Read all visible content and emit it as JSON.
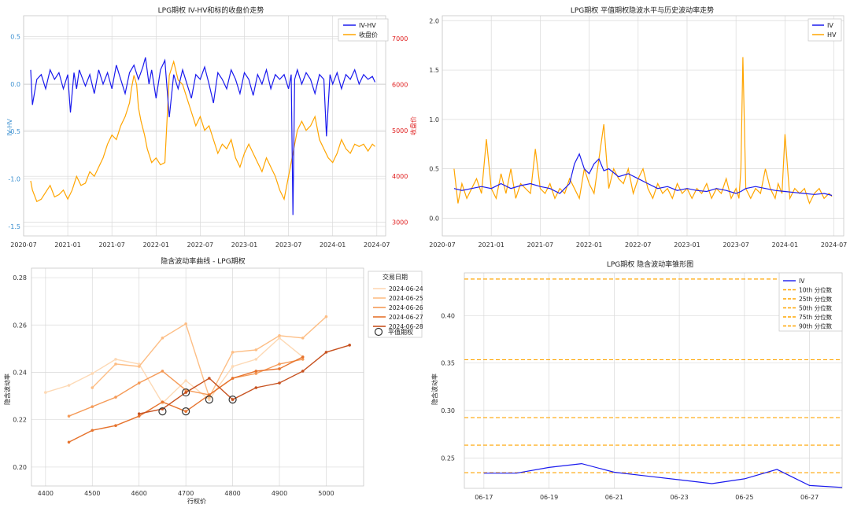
{
  "colors": {
    "iv": "#1a1aee",
    "hv": "#ffa500",
    "close": "#ffa500",
    "right_axis": "#e02020",
    "left_axis": "#3a8fd0",
    "grid": "#d9d9d9",
    "pct": "#ffa500",
    "smile": [
      "#fdd9b5",
      "#fdbe85",
      "#f59a57",
      "#e6732d",
      "#c75220"
    ]
  },
  "chart_data": [
    {
      "id": "ivhv",
      "type": "line",
      "title": "LPG期权 IV-HV和标的收盘价走势",
      "xlabel": "",
      "ylabel": "IV-HV",
      "y2label": "收盘价",
      "ylim": [
        -1.6,
        0.72
      ],
      "y2lim": [
        2700,
        7500
      ],
      "yticks": [
        "0.5",
        "0.0",
        "-0.5",
        "-1.0",
        "-1.5"
      ],
      "ytick_values": [
        0.5,
        0.0,
        -0.5,
        -1.0,
        -1.5
      ],
      "y2ticks": [
        "7000",
        "6000",
        "5000",
        "4000",
        "3000"
      ],
      "y2tick_values": [
        7000,
        6000,
        5000,
        4000,
        3000
      ],
      "xticks": [
        "2020-07",
        "2021-01",
        "2021-07",
        "2022-01",
        "2022-07",
        "2023-01",
        "2023-07",
        "2024-01",
        "2024-07"
      ],
      "xlim": [
        2020.5,
        2024.6
      ],
      "legend": [
        "IV-HV",
        "收盘价"
      ],
      "series": [
        {
          "name": "IV-HV",
          "x": [
            2020.58,
            2020.6,
            2020.65,
            2020.7,
            2020.75,
            2020.8,
            2020.85,
            2020.9,
            2020.95,
            2021.0,
            2021.03,
            2021.07,
            2021.1,
            2021.13,
            2021.17,
            2021.2,
            2021.25,
            2021.3,
            2021.35,
            2021.4,
            2021.45,
            2021.5,
            2021.55,
            2021.6,
            2021.65,
            2021.7,
            2021.75,
            2021.8,
            2021.85,
            2021.88,
            2021.92,
            2021.95,
            2022.0,
            2022.05,
            2022.1,
            2022.15,
            2022.2,
            2022.25,
            2022.3,
            2022.35,
            2022.4,
            2022.45,
            2022.5,
            2022.55,
            2022.6,
            2022.65,
            2022.7,
            2022.75,
            2022.8,
            2022.85,
            2022.9,
            2022.95,
            2023.0,
            2023.05,
            2023.1,
            2023.15,
            2023.2,
            2023.25,
            2023.3,
            2023.35,
            2023.4,
            2023.45,
            2023.5,
            2023.53,
            2023.55,
            2023.57,
            2023.6,
            2023.65,
            2023.7,
            2023.75,
            2023.8,
            2023.85,
            2023.9,
            2023.93,
            2023.97,
            2024.0,
            2024.05,
            2024.1,
            2024.15,
            2024.2,
            2024.25,
            2024.3,
            2024.35,
            2024.4,
            2024.45,
            2024.48
          ],
          "values": [
            0.15,
            -0.22,
            0.05,
            0.1,
            -0.05,
            0.15,
            0.05,
            0.12,
            -0.05,
            0.1,
            -0.3,
            0.12,
            -0.05,
            0.15,
            0.05,
            -0.02,
            0.1,
            -0.1,
            0.15,
            0.0,
            0.12,
            -0.05,
            0.2,
            0.05,
            -0.1,
            0.12,
            0.2,
            0.05,
            0.18,
            0.28,
            0.0,
            0.15,
            -0.15,
            0.15,
            0.25,
            -0.35,
            0.1,
            -0.05,
            0.15,
            0.0,
            -0.15,
            0.1,
            0.05,
            0.18,
            0.0,
            -0.2,
            0.12,
            0.05,
            -0.05,
            0.15,
            0.05,
            -0.1,
            0.12,
            0.05,
            -0.12,
            0.1,
            0.0,
            0.15,
            -0.05,
            0.1,
            0.05,
            0.1,
            -0.05,
            0.1,
            -1.38,
            0.05,
            0.15,
            0.0,
            0.12,
            0.05,
            -0.1,
            0.1,
            0.05,
            -0.55,
            0.1,
            0.0,
            0.12,
            -0.05,
            0.1,
            0.05,
            0.15,
            0.0,
            0.1,
            0.05,
            0.08,
            0.02
          ]
        },
        {
          "name": "收盘价",
          "axis": "y2",
          "x": [
            2020.58,
            2020.6,
            2020.65,
            2020.7,
            2020.75,
            2020.8,
            2020.85,
            2020.9,
            2020.95,
            2021.0,
            2021.05,
            2021.1,
            2021.15,
            2021.2,
            2021.25,
            2021.3,
            2021.35,
            2021.4,
            2021.45,
            2021.5,
            2021.55,
            2021.6,
            2021.65,
            2021.7,
            2021.72,
            2021.75,
            2021.78,
            2021.8,
            2021.83,
            2021.87,
            2021.9,
            2021.95,
            2022.0,
            2022.05,
            2022.1,
            2022.15,
            2022.2,
            2022.25,
            2022.3,
            2022.35,
            2022.4,
            2022.45,
            2022.5,
            2022.55,
            2022.6,
            2022.65,
            2022.7,
            2022.75,
            2022.8,
            2022.85,
            2022.9,
            2022.95,
            2023.0,
            2023.05,
            2023.1,
            2023.15,
            2023.2,
            2023.25,
            2023.3,
            2023.35,
            2023.4,
            2023.45,
            2023.5,
            2023.55,
            2023.6,
            2023.65,
            2023.7,
            2023.75,
            2023.8,
            2023.85,
            2023.9,
            2023.95,
            2024.0,
            2024.05,
            2024.1,
            2024.15,
            2024.2,
            2024.25,
            2024.3,
            2024.35,
            2024.4,
            2024.45,
            2024.48
          ],
          "values": [
            3900,
            3700,
            3450,
            3500,
            3650,
            3800,
            3550,
            3600,
            3700,
            3500,
            3700,
            4000,
            3800,
            3850,
            4100,
            4000,
            4200,
            4400,
            4700,
            4900,
            4800,
            5100,
            5300,
            5600,
            5900,
            6200,
            6000,
            5500,
            5200,
            4900,
            4600,
            4300,
            4400,
            4250,
            4300,
            6200,
            6500,
            6100,
            6000,
            5700,
            5400,
            5100,
            5300,
            5000,
            5100,
            4800,
            4500,
            4700,
            4600,
            4800,
            4400,
            4200,
            4500,
            4700,
            4500,
            4300,
            4100,
            4400,
            4200,
            4000,
            3700,
            3500,
            4000,
            4500,
            5000,
            5200,
            5000,
            5100,
            5300,
            4800,
            4600,
            4400,
            4300,
            4500,
            4800,
            4600,
            4500,
            4700,
            4650,
            4700,
            4550,
            4700,
            4650
          ]
        }
      ]
    },
    {
      "id": "ivhv2",
      "type": "line",
      "title": "LPG期权 平值期权隐波水平与历史波动率走势",
      "xlabel": "",
      "ylabel": "",
      "ylim": [
        -0.18,
        2.05
      ],
      "yticks": [
        "2.0",
        "1.5",
        "1.0",
        "0.5",
        "0.0"
      ],
      "ytick_values": [
        2.0,
        1.5,
        1.0,
        0.5,
        0.0
      ],
      "xticks": [
        "2020-07",
        "2021-01",
        "2021-07",
        "2022-01",
        "2022-07",
        "2023-01",
        "2023-07",
        "2024-01",
        "2024-07"
      ],
      "xlim": [
        2020.5,
        2024.6
      ],
      "legend": [
        "IV",
        "HV"
      ],
      "series": [
        {
          "name": "IV",
          "x": [
            2020.62,
            2020.7,
            2020.8,
            2020.9,
            2021.0,
            2021.1,
            2021.2,
            2021.3,
            2021.4,
            2021.5,
            2021.6,
            2021.7,
            2021.75,
            2021.8,
            2021.85,
            2021.9,
            2021.95,
            2022.0,
            2022.05,
            2022.1,
            2022.15,
            2022.2,
            2022.3,
            2022.4,
            2022.5,
            2022.6,
            2022.7,
            2022.8,
            2022.9,
            2023.0,
            2023.1,
            2023.2,
            2023.3,
            2023.4,
            2023.5,
            2023.55,
            2023.6,
            2023.7,
            2023.8,
            2023.9,
            2024.0,
            2024.1,
            2024.2,
            2024.3,
            2024.4,
            2024.48
          ],
          "values": [
            0.3,
            0.28,
            0.3,
            0.32,
            0.3,
            0.35,
            0.3,
            0.33,
            0.35,
            0.32,
            0.3,
            0.25,
            0.3,
            0.35,
            0.55,
            0.65,
            0.5,
            0.45,
            0.55,
            0.6,
            0.48,
            0.5,
            0.42,
            0.45,
            0.4,
            0.35,
            0.3,
            0.32,
            0.28,
            0.3,
            0.28,
            0.27,
            0.3,
            0.28,
            0.25,
            0.27,
            0.3,
            0.32,
            0.3,
            0.28,
            0.27,
            0.26,
            0.25,
            0.24,
            0.25,
            0.23
          ]
        },
        {
          "name": "HV",
          "x": [
            2020.62,
            2020.66,
            2020.7,
            2020.75,
            2020.8,
            2020.85,
            2020.9,
            2020.95,
            2021.0,
            2021.05,
            2021.1,
            2021.15,
            2021.2,
            2021.25,
            2021.3,
            2021.35,
            2021.4,
            2021.45,
            2021.5,
            2021.55,
            2021.6,
            2021.65,
            2021.7,
            2021.75,
            2021.8,
            2021.85,
            2021.9,
            2021.95,
            2022.0,
            2022.05,
            2022.1,
            2022.15,
            2022.2,
            2022.25,
            2022.3,
            2022.35,
            2022.4,
            2022.45,
            2022.5,
            2022.55,
            2022.6,
            2022.65,
            2022.7,
            2022.75,
            2022.8,
            2022.85,
            2022.9,
            2022.95,
            2023.0,
            2023.05,
            2023.1,
            2023.15,
            2023.2,
            2023.25,
            2023.3,
            2023.35,
            2023.4,
            2023.45,
            2023.5,
            2023.53,
            2023.55,
            2023.57,
            2023.6,
            2023.65,
            2023.7,
            2023.75,
            2023.8,
            2023.85,
            2023.9,
            2023.93,
            2023.97,
            2024.0,
            2024.05,
            2024.1,
            2024.15,
            2024.2,
            2024.25,
            2024.3,
            2024.35,
            2024.4,
            2024.45,
            2024.48
          ],
          "values": [
            0.5,
            0.15,
            0.35,
            0.2,
            0.3,
            0.4,
            0.25,
            0.8,
            0.3,
            0.2,
            0.45,
            0.25,
            0.5,
            0.2,
            0.35,
            0.3,
            0.25,
            0.7,
            0.3,
            0.25,
            0.35,
            0.2,
            0.3,
            0.25,
            0.4,
            0.3,
            0.2,
            0.5,
            0.35,
            0.25,
            0.6,
            0.95,
            0.3,
            0.5,
            0.4,
            0.35,
            0.5,
            0.25,
            0.4,
            0.5,
            0.3,
            0.2,
            0.35,
            0.25,
            0.3,
            0.2,
            0.35,
            0.25,
            0.3,
            0.2,
            0.3,
            0.25,
            0.35,
            0.2,
            0.3,
            0.25,
            0.4,
            0.2,
            0.3,
            0.2,
            0.5,
            1.63,
            0.3,
            0.2,
            0.3,
            0.25,
            0.5,
            0.3,
            0.2,
            0.35,
            0.25,
            0.85,
            0.2,
            0.3,
            0.25,
            0.3,
            0.15,
            0.25,
            0.3,
            0.2,
            0.25,
            0.22
          ]
        }
      ]
    },
    {
      "id": "smile",
      "type": "line",
      "title": "隐含波动率曲线 - LPG期权",
      "xlabel": "行权价",
      "ylabel": "隐含波动率",
      "xlim": [
        4370,
        5080
      ],
      "ylim": [
        0.192,
        0.284
      ],
      "xticks": [
        "4400",
        "4500",
        "4600",
        "4700",
        "4800",
        "4900",
        "5000"
      ],
      "xtick_values": [
        4400,
        4500,
        4600,
        4700,
        4800,
        4900,
        5000
      ],
      "yticks": [
        "0.28",
        "0.26",
        "0.24",
        "0.22",
        "0.20"
      ],
      "ytick_values": [
        0.28,
        0.26,
        0.24,
        0.22,
        0.2
      ],
      "legend_title": "交易日期",
      "legend_marker_label": "平值期权",
      "series": [
        {
          "name": "2024-06-24",
          "x": [
            4400,
            4450,
            4500,
            4550,
            4600,
            4650,
            4700,
            4750,
            4800,
            4850,
            4900,
            4950
          ],
          "values": [
            0.2315,
            0.2345,
            0.2395,
            0.2455,
            0.2435,
            0.227,
            0.2365,
            0.2285,
            0.2425,
            0.2455,
            0.2545,
            0.2465
          ]
        },
        {
          "name": "2024-06-25",
          "x": [
            4500,
            4550,
            4600,
            4650,
            4700,
            4750,
            4800,
            4850,
            4900,
            4950,
            5000
          ],
          "values": [
            0.2335,
            0.2435,
            0.2425,
            0.2545,
            0.2605,
            0.2295,
            0.2485,
            0.2495,
            0.2555,
            0.2545,
            0.2635
          ]
        },
        {
          "name": "2024-06-26",
          "x": [
            4450,
            4500,
            4550,
            4600,
            4650,
            4700,
            4750,
            4800,
            4850,
            4900,
            4950
          ],
          "values": [
            0.2215,
            0.2255,
            0.2295,
            0.2355,
            0.2405,
            0.2325,
            0.2305,
            0.2375,
            0.2395,
            0.2435,
            0.2455
          ]
        },
        {
          "name": "2024-06-27",
          "x": [
            4450,
            4500,
            4550,
            4600,
            4650,
            4700,
            4750,
            4800,
            4850,
            4900,
            4950
          ],
          "values": [
            0.2105,
            0.2155,
            0.2175,
            0.2215,
            0.2275,
            0.2235,
            0.2305,
            0.2375,
            0.2405,
            0.2415,
            0.2465
          ]
        },
        {
          "name": "2024-06-28",
          "x": [
            4600,
            4650,
            4700,
            4750,
            4800,
            4850,
            4900,
            4950,
            5000,
            5050
          ],
          "values": [
            0.2225,
            0.2245,
            0.2315,
            0.2375,
            0.2285,
            0.2335,
            0.2355,
            0.2405,
            0.2485,
            0.2515
          ]
        }
      ],
      "atm_points": [
        {
          "x": 4650,
          "y": 0.2235
        },
        {
          "x": 4700,
          "y": 0.2235
        },
        {
          "x": 4700,
          "y": 0.2315
        },
        {
          "x": 4750,
          "y": 0.2285
        },
        {
          "x": 4800,
          "y": 0.2285
        }
      ]
    },
    {
      "id": "cone",
      "type": "line",
      "title": "LPG期权 隐含波动率锥形图",
      "xlabel": "",
      "ylabel": "隐含波动率",
      "xlim": [
        -0.6,
        11.0
      ],
      "ylim": [
        0.218,
        0.445
      ],
      "xticks": [
        "06-17",
        "06-19",
        "06-21",
        "06-23",
        "06-25",
        "06-27"
      ],
      "xtick_values": [
        0,
        2,
        4,
        6,
        8,
        10
      ],
      "yticks": [
        "0.40",
        "0.35",
        "0.30",
        "0.25"
      ],
      "ytick_values": [
        0.4,
        0.35,
        0.3,
        0.25
      ],
      "series": [
        {
          "name": "IV",
          "x": [
            0,
            1,
            2,
            3,
            4,
            5,
            6,
            7,
            8,
            9,
            10,
            11
          ],
          "values": [
            0.234,
            0.234,
            0.24,
            0.244,
            0.235,
            0.231,
            0.227,
            0.223,
            0.228,
            0.238,
            0.221,
            0.219
          ]
        }
      ],
      "percentiles": [
        {
          "name": "10th 分位数",
          "value": 0.2345
        },
        {
          "name": "25th 分位数",
          "value": 0.2635
        },
        {
          "name": "50th 分位数",
          "value": 0.2925
        },
        {
          "name": "75th 分位数",
          "value": 0.3535
        },
        {
          "name": "90th 分位数",
          "value": 0.4385
        }
      ],
      "legend": [
        "IV",
        "10th 分位数",
        "25th 分位数",
        "50th 分位数",
        "75th 分位数",
        "90th 分位数"
      ]
    }
  ]
}
